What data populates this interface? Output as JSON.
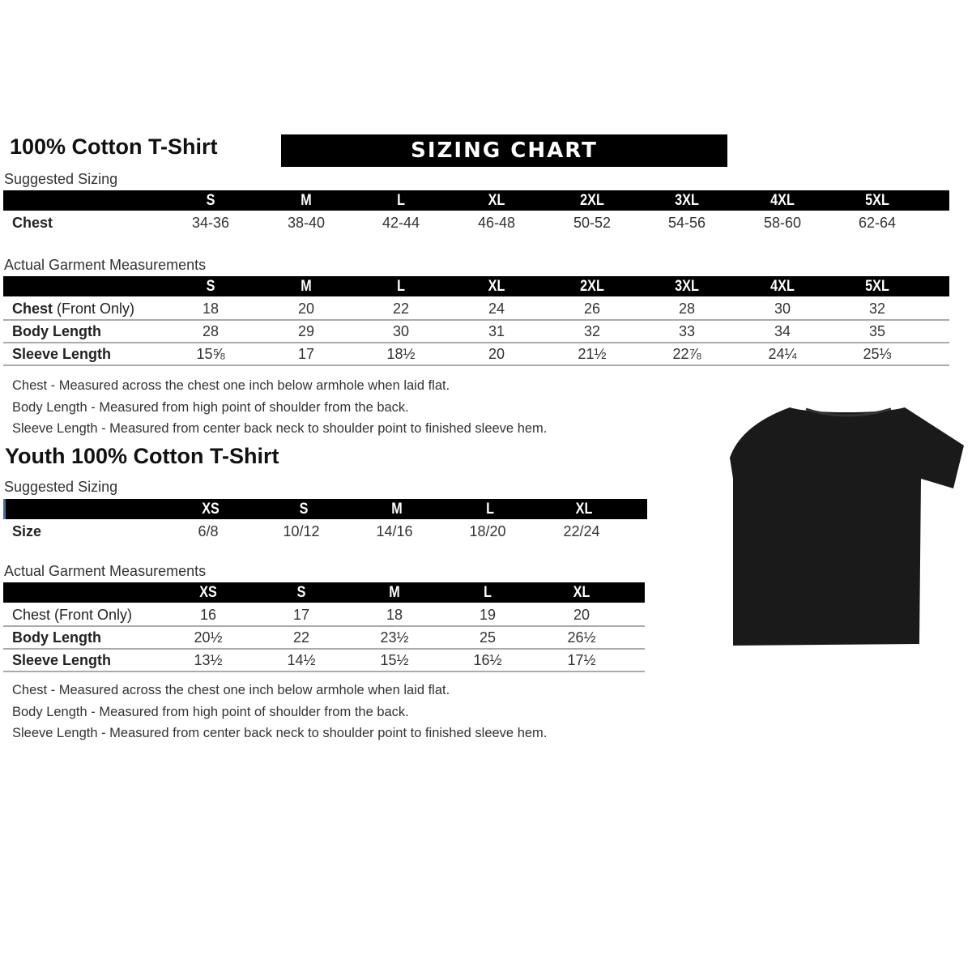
{
  "banner": "SIZING CHART",
  "adult": {
    "title": "100% Cotton T-Shirt",
    "suggested_label": "Suggested Sizing",
    "sizes": [
      "S",
      "M",
      "L",
      "XL",
      "2XL",
      "3XL",
      "4XL",
      "5XL"
    ],
    "suggested_rows": [
      {
        "label": "Chest",
        "values": [
          "34-36",
          "38-40",
          "42-44",
          "46-48",
          "50-52",
          "54-56",
          "58-60",
          "62-64"
        ]
      }
    ],
    "actual_label": "Actual Garment Measurements",
    "actual_rows": [
      {
        "label": "Chest",
        "label_extra": " (Front Only)",
        "values": [
          "18",
          "20",
          "22",
          "24",
          "26",
          "28",
          "30",
          "32"
        ]
      },
      {
        "label": "Body Length",
        "label_extra": "",
        "values": [
          "28",
          "29",
          "30",
          "31",
          "32",
          "33",
          "34",
          "35"
        ]
      },
      {
        "label": "Sleeve Length",
        "label_extra": "",
        "values": [
          "15⅝",
          "17",
          "18½",
          "20",
          "21½",
          "22⅞",
          "24¼",
          "25⅓"
        ]
      }
    ],
    "notes": [
      "Chest - Measured across the chest one inch below armhole when laid flat.",
      "Body Length - Measured from high point of shoulder from the back.",
      "Sleeve Length - Measured from center back neck to shoulder point to finished sleeve hem."
    ]
  },
  "youth": {
    "title": "Youth 100% Cotton T-Shirt",
    "suggested_label": "Suggested Sizing",
    "sizes": [
      "XS",
      "S",
      "M",
      "L",
      "XL"
    ],
    "suggested_rows": [
      {
        "label": "Size",
        "values": [
          "6/8",
          "10/12",
          "14/16",
          "18/20",
          "22/24"
        ]
      }
    ],
    "actual_label": "Actual Garment Measurements",
    "actual_rows": [
      {
        "label": "Chest (Front Only)",
        "values": [
          "16",
          "17",
          "18",
          "19",
          "20"
        ]
      },
      {
        "label": "Body Length",
        "values": [
          "20½",
          "22",
          "23½",
          "25",
          "26½"
        ]
      },
      {
        "label": "Sleeve Length",
        "values": [
          "13½",
          "14½",
          "15½",
          "16½",
          "17½"
        ]
      }
    ],
    "notes": [
      "Chest - Measured across the chest one inch below armhole when laid flat.",
      "Body Length - Measured from high point of shoulder from the back.",
      "Sleeve Length - Measured from center back neck to shoulder point to finished sleeve hem."
    ]
  },
  "colors": {
    "header": "#000000",
    "shirt": "#1a1a1a",
    "divider": "#aaaaaa"
  }
}
